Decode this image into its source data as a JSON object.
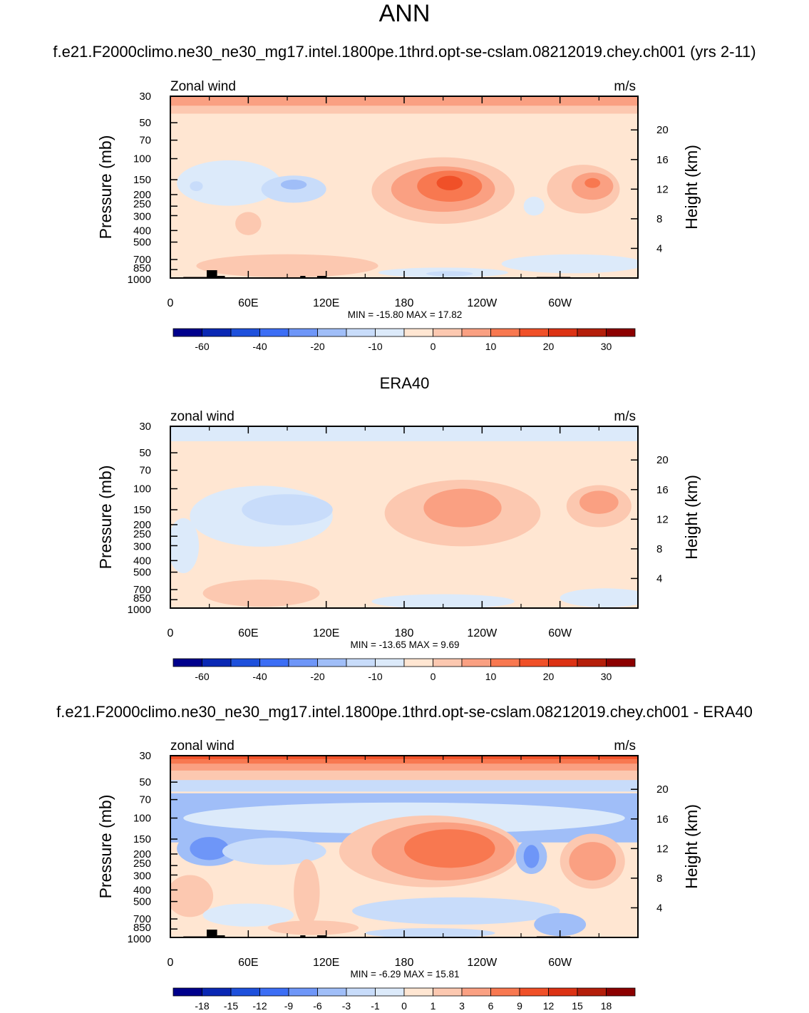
{
  "figure": {
    "main_title": "ANN",
    "subtitle": "f.e21.F2000climo.ne30_ne30_mg17.intel.1800pe.1thrd.opt-se-cslam.08212019.chey.ch001 (yrs 2-11)"
  },
  "chart_data": [
    {
      "type": "heatmap",
      "title": "f.e21.F2000climo.ne30_ne30_mg17.intel.1800pe.1thrd.opt-se-cslam.08212019.chey.ch001 (yrs 2-11)",
      "left_label": "Zonal wind",
      "units": "m/s",
      "ylabel": "Pressure (mb)",
      "y2label": "Height (km)",
      "y_ticks": [
        "30",
        "50",
        "70",
        "100",
        "150",
        "200",
        "250",
        "300",
        "400",
        "500",
        "700",
        "850",
        "1000"
      ],
      "y2_ticks": [
        "20",
        "16",
        "12",
        "8",
        "4"
      ],
      "x_ticks": [
        "0",
        "60E",
        "120E",
        "180",
        "120W",
        "60W"
      ],
      "stats": "MIN = -15.80  MAX =  17.82",
      "colorbar_labels": [
        "-60",
        "-40",
        "-20",
        "-10",
        "0",
        "10",
        "20",
        "30"
      ],
      "colors": [
        "#00008c",
        "#0a28b4",
        "#1e50dc",
        "#3c6ef5",
        "#6e96f8",
        "#a0bef8",
        "#c8dcfa",
        "#dceafa",
        "#ffe6d2",
        "#fcc8b0",
        "#faa082",
        "#f87850",
        "#f05028",
        "#dc3214",
        "#b41e0a",
        "#8c0000"
      ],
      "fill_levels": [
        "#ffe6d2",
        "#dceafa",
        "#c8dcfa",
        "#a0bef8",
        "#fcc8b0",
        "#faa082",
        "#f87850"
      ]
    },
    {
      "type": "heatmap",
      "title": "ERA40",
      "left_label": "zonal wind",
      "units": "m/s",
      "ylabel": "Pressure (mb)",
      "y2label": "Height (km)",
      "y_ticks": [
        "30",
        "50",
        "70",
        "100",
        "150",
        "200",
        "250",
        "300",
        "400",
        "500",
        "700",
        "850",
        "1000"
      ],
      "y2_ticks": [
        "20",
        "16",
        "12",
        "8",
        "4"
      ],
      "x_ticks": [
        "0",
        "60E",
        "120E",
        "180",
        "120W",
        "60W"
      ],
      "stats": "MIN = -13.65  MAX =    9.69",
      "colorbar_labels": [
        "-60",
        "-40",
        "-20",
        "-10",
        "0",
        "10",
        "20",
        "30"
      ],
      "colors": [
        "#00008c",
        "#0a28b4",
        "#1e50dc",
        "#3c6ef5",
        "#6e96f8",
        "#a0bef8",
        "#c8dcfa",
        "#dceafa",
        "#ffe6d2",
        "#fcc8b0",
        "#faa082",
        "#f87850",
        "#f05028",
        "#dc3214",
        "#b41e0a",
        "#8c0000"
      ]
    },
    {
      "type": "heatmap",
      "title": "f.e21.F2000climo.ne30_ne30_mg17.intel.1800pe.1thrd.opt-se-cslam.08212019.chey.ch001 - ERA40",
      "left_label": "zonal wind",
      "units": "m/s",
      "ylabel": "Pressure (mb)",
      "y2label": "Height (km)",
      "y_ticks": [
        "30",
        "50",
        "70",
        "100",
        "150",
        "200",
        "250",
        "300",
        "400",
        "500",
        "700",
        "850",
        "1000"
      ],
      "y2_ticks": [
        "20",
        "16",
        "12",
        "8",
        "4"
      ],
      "x_ticks": [
        "0",
        "60E",
        "120E",
        "180",
        "120W",
        "60W"
      ],
      "stats": "MIN =   -6.29  MAX =  15.81",
      "colorbar_labels": [
        "-18",
        "-15",
        "-12",
        "-9",
        "-6",
        "-3",
        "-1",
        "0",
        "1",
        "3",
        "6",
        "9",
        "12",
        "15",
        "18"
      ],
      "colors": [
        "#00008c",
        "#0a28b4",
        "#1e50dc",
        "#3c6ef5",
        "#6e96f8",
        "#a0bef8",
        "#c8dcfa",
        "#dceafa",
        "#ffe6d2",
        "#fcc8b0",
        "#faa082",
        "#f87850",
        "#f05028",
        "#dc3214",
        "#b41e0a",
        "#8c0000"
      ]
    }
  ]
}
